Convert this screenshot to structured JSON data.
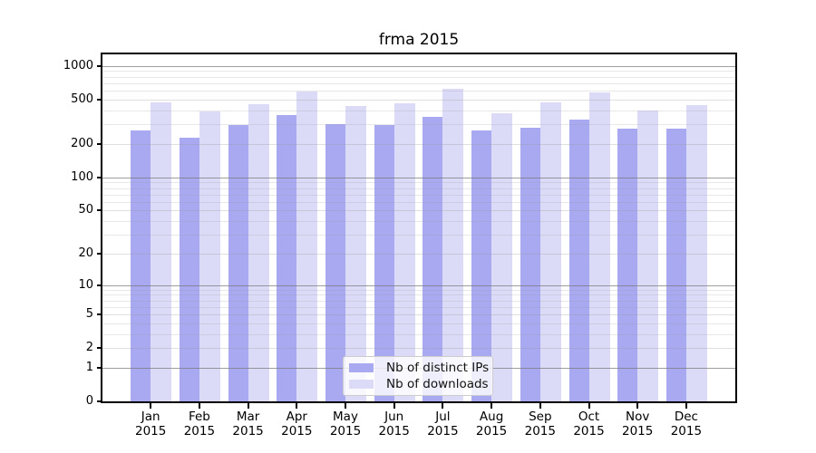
{
  "title": "frma 2015",
  "chart_data": {
    "type": "bar",
    "categories": [
      "Jan",
      "Feb",
      "Mar",
      "Apr",
      "May",
      "Jun",
      "Jul",
      "Aug",
      "Sep",
      "Oct",
      "Nov",
      "Dec"
    ],
    "category_year": "2015",
    "series": [
      {
        "name": "Nb of distinct IPs",
        "color": "#a9a9f1",
        "values": [
          265,
          228,
          296,
          364,
          302,
          296,
          351,
          265,
          280,
          332,
          275,
          275
        ]
      },
      {
        "name": "Nb of downloads",
        "color": "#dbdbf8",
        "values": [
          474,
          393,
          456,
          593,
          435,
          465,
          627,
          378,
          474,
          582,
          400,
          448
        ]
      }
    ],
    "yscale": "log1p",
    "ylim": [
      0,
      1270
    ],
    "yticks": [
      0,
      1,
      2,
      5,
      10,
      20,
      50,
      100,
      200,
      500,
      1000
    ],
    "emphasized_gridlines": [
      1,
      10,
      100,
      1000
    ],
    "minor_gridlines": [
      3,
      4,
      6,
      7,
      8,
      9,
      30,
      40,
      60,
      70,
      80,
      90,
      300,
      400,
      600,
      700,
      800,
      900
    ],
    "grid": "on",
    "legend_position": "bottom-center",
    "xlabel": "",
    "ylabel": ""
  },
  "legend": {
    "items": [
      {
        "label": "Nb of distinct IPs"
      },
      {
        "label": "Nb of downloads"
      }
    ]
  }
}
